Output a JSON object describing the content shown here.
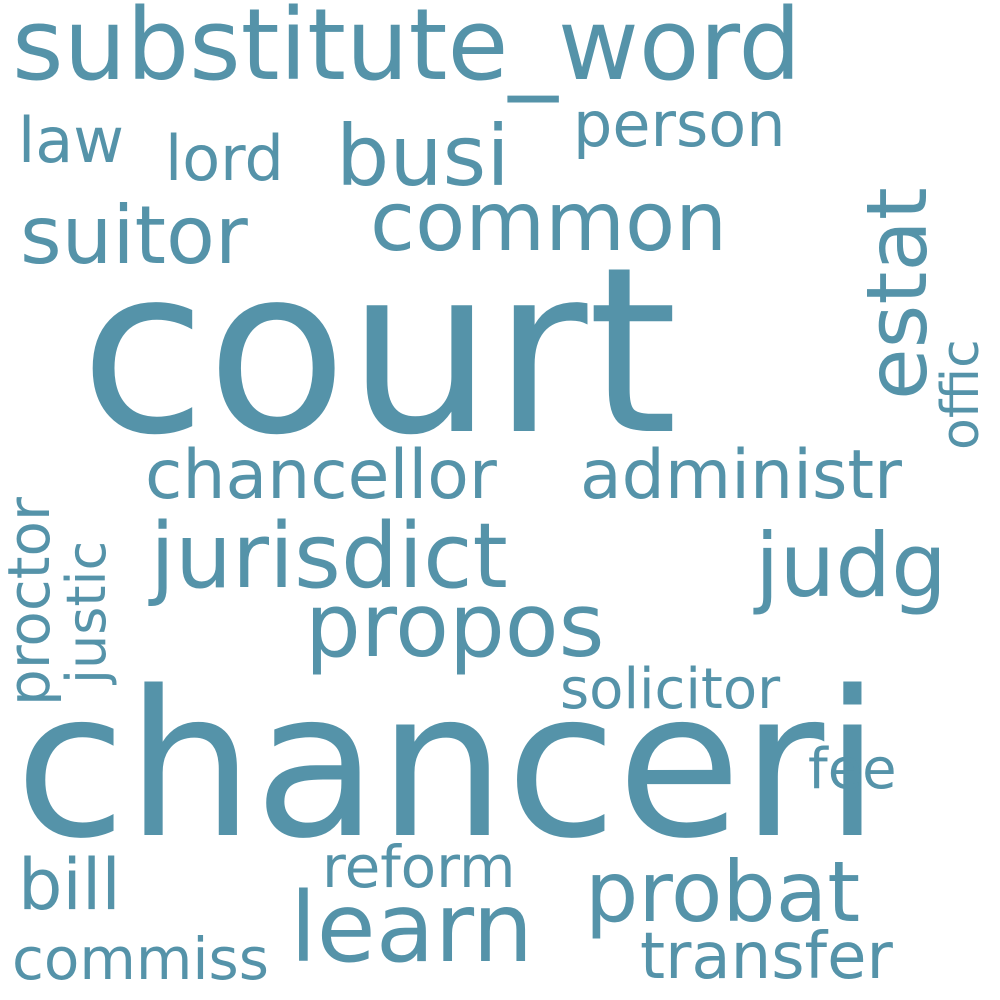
{
  "colors": {
    "background": "#ffffff",
    "word": "#5593a9"
  },
  "words": {
    "court": "court",
    "chanceri": "chanceri",
    "substitute_word": "substitute_word",
    "busi": "busi",
    "common": "common",
    "suitor": "suitor",
    "estat": "estat",
    "person": "person",
    "law": "law",
    "lord": "lord",
    "offic": "offic",
    "chancellor": "chancellor",
    "administr": "administr",
    "jurisdict": "jurisdict",
    "judg": "judg",
    "propos": "propos",
    "proctor": "proctor",
    "justic": "justic",
    "solicitor": "solicitor",
    "fee": "fee",
    "reform": "reform",
    "bill": "bill",
    "probat": "probat",
    "learn": "learn",
    "commiss": "commiss",
    "transfer": "transfer"
  }
}
